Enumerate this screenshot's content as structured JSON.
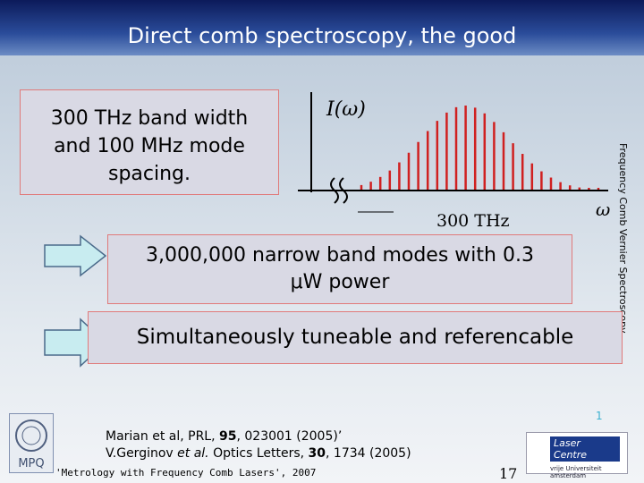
{
  "header": {
    "title": "Direct comb spectroscopy, the good"
  },
  "side_label": "Frequency Comb Vernier Spectroscopy",
  "box1": {
    "lines": [
      "300 THz band width",
      "and 100 MHz mode",
      "spacing."
    ]
  },
  "figure": {
    "y_label": "I(ω)",
    "span_label": "300 THz",
    "x_label": "ω"
  },
  "box2": {
    "lines": [
      "3,000,000 narrow band modes with 0.3",
      "μW power"
    ]
  },
  "box3": {
    "text": "Simultaneously tuneable and referencable"
  },
  "slide_mark": "1",
  "references": [
    {
      "parts": [
        "Marian et al, PRL, ",
        "95",
        ", 023001 (2005)’"
      ]
    },
    {
      "parts": [
        "V.Gerginov ",
        "et al.",
        " Optics Letters, ",
        "30",
        ", 1734 (2005)"
      ]
    }
  ],
  "footer": {
    "left": "'Metrology with Frequency Comb Lasers', 2007",
    "page": "17"
  },
  "logos": {
    "mpq": "MPQ",
    "laser_centre": "Laser Centre",
    "university": "vrije Universiteit amsterdam"
  }
}
